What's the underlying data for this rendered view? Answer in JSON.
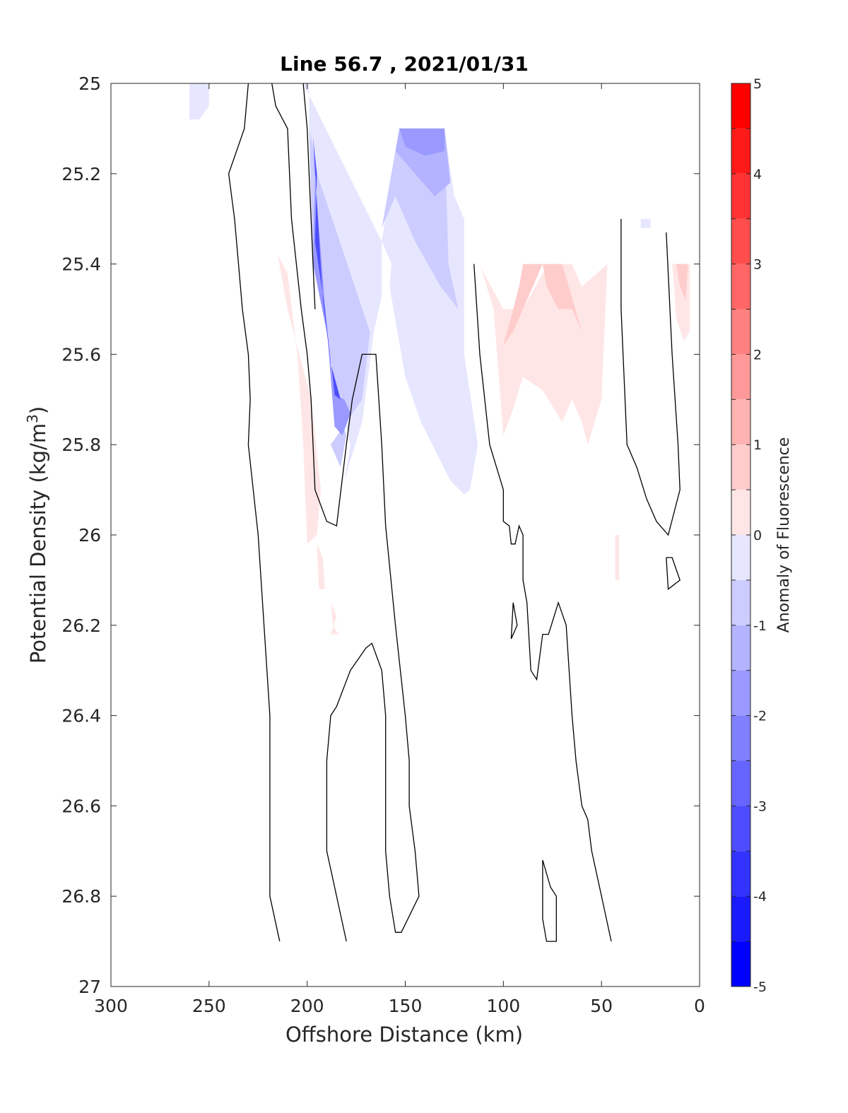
{
  "chart_data": {
    "type": "contour",
    "title": "Line 56.7 , 2021/01/31",
    "xlabel": "Offshore Distance (km)",
    "ylabel_main": "Potential Density (kg/m",
    "ylabel_sup": "3",
    "ylabel_close": ")",
    "xlim": [
      300,
      0
    ],
    "ylim": [
      25,
      27
    ],
    "y_reversed": true,
    "x_ticks": [
      "300",
      "250",
      "200",
      "150",
      "100",
      "50",
      "0"
    ],
    "x_tick_values": [
      300,
      250,
      200,
      150,
      100,
      50,
      0
    ],
    "y_ticks": [
      "25",
      "25.2",
      "25.4",
      "25.6",
      "25.8",
      "26",
      "26.2",
      "26.4",
      "26.6",
      "26.8",
      "27"
    ],
    "y_tick_values": [
      25,
      25.2,
      25.4,
      25.6,
      25.8,
      26,
      26.2,
      26.4,
      26.6,
      26.8,
      27
    ],
    "colorbar": {
      "label": "Anomaly of Fluorescence",
      "range": [
        -5,
        5
      ],
      "step": 0.5,
      "tick_labels": [
        "5",
        "4",
        "3",
        "2",
        "1",
        "0",
        "-1",
        "-2",
        "-3",
        "-4",
        "-5"
      ],
      "tick_values": [
        5,
        4,
        3,
        2,
        1,
        0,
        -1,
        -2,
        -3,
        -4,
        -5
      ],
      "negative_color": "#0000ff",
      "positive_color": "#ff0000",
      "neutral_color": "#ffffff"
    },
    "filled_regions": [
      {
        "level": -0.5,
        "points": [
          [
            260,
            25
          ],
          [
            250,
            25
          ],
          [
            250,
            25.05
          ],
          [
            255,
            25.08
          ],
          [
            260,
            25.08
          ]
        ]
      },
      {
        "level": -0.5,
        "points": [
          [
            202,
            25
          ],
          [
            199,
            25
          ],
          [
            199,
            25.1
          ],
          [
            197,
            25.2
          ],
          [
            197,
            25.4
          ],
          [
            190,
            25.55
          ],
          [
            183,
            25.7
          ],
          [
            178,
            25.8
          ],
          [
            181,
            25.88
          ],
          [
            172,
            25.75
          ],
          [
            166,
            25.55
          ],
          [
            162,
            25.47
          ],
          [
            162,
            25.35
          ],
          [
            153,
            25.1
          ],
          [
            130,
            25.1
          ],
          [
            125,
            25.25
          ],
          [
            120,
            25.3
          ],
          [
            120,
            25.6
          ],
          [
            113,
            25.8
          ],
          [
            117,
            25.9
          ],
          [
            120,
            25.91
          ],
          [
            127,
            25.88
          ],
          [
            142,
            25.75
          ],
          [
            150,
            25.65
          ],
          [
            158,
            25.45
          ],
          [
            157,
            25.4
          ],
          [
            162,
            25.35
          ]
        ]
      },
      {
        "level": -1.0,
        "points": [
          [
            153,
            25.1
          ],
          [
            130,
            25.1
          ],
          [
            128,
            25.4
          ],
          [
            123,
            25.5
          ],
          [
            132,
            25.45
          ],
          [
            145,
            25.35
          ],
          [
            155,
            25.25
          ],
          [
            162,
            25.32
          ]
        ]
      },
      {
        "level": -1.5,
        "points": [
          [
            153,
            25.1
          ],
          [
            130,
            25.1
          ],
          [
            127,
            25.22
          ],
          [
            135,
            25.25
          ],
          [
            145,
            25.2
          ],
          [
            155,
            25.15
          ]
        ]
      },
      {
        "level": -2.0,
        "points": [
          [
            153,
            25.1
          ],
          [
            130,
            25.1
          ],
          [
            130,
            25.15
          ],
          [
            140,
            25.16
          ],
          [
            150,
            25.14
          ]
        ]
      },
      {
        "level": -1.0,
        "points": [
          [
            199,
            25.1
          ],
          [
            197,
            25.4
          ],
          [
            190,
            25.55
          ],
          [
            185,
            25.7
          ],
          [
            180,
            25.78
          ],
          [
            183,
            25.85
          ],
          [
            188,
            25.8
          ],
          [
            172,
            25.7
          ],
          [
            168,
            25.55
          ],
          [
            195,
            25.2
          ]
        ]
      },
      {
        "level": -2.0,
        "points": [
          [
            198,
            25.1
          ],
          [
            196,
            25.2
          ],
          [
            197,
            25.4
          ],
          [
            190,
            25.55
          ],
          [
            186,
            25.69
          ],
          [
            181,
            25.7
          ],
          [
            178,
            25.73
          ],
          [
            182,
            25.78
          ],
          [
            186,
            25.76
          ]
        ]
      },
      {
        "level": -3.5,
        "points": [
          [
            197,
            25.12
          ],
          [
            195,
            25.2
          ],
          [
            196,
            25.35
          ],
          [
            191,
            25.5
          ],
          [
            186,
            25.69
          ],
          [
            183,
            25.7
          ],
          [
            188,
            25.62
          ],
          [
            192,
            25.48
          ]
        ]
      },
      {
        "level": 0.5,
        "points": [
          [
            215,
            25.38
          ],
          [
            210,
            25.42
          ],
          [
            205,
            25.6
          ],
          [
            202,
            25.8
          ],
          [
            200,
            26.02
          ],
          [
            195,
            26
          ],
          [
            193,
            25.9
          ],
          [
            198,
            25.7
          ],
          [
            210,
            25.5
          ]
        ]
      },
      {
        "level": 0.5,
        "points": [
          [
            195,
            26.02
          ],
          [
            192,
            26.05
          ],
          [
            191,
            26.12
          ],
          [
            194,
            26.12
          ]
        ]
      },
      {
        "level": 0.5,
        "points": [
          [
            188,
            26.15
          ],
          [
            185,
            26.18
          ],
          [
            188,
            26.22
          ],
          [
            184,
            26.22
          ],
          [
            187,
            26.2
          ]
        ]
      },
      {
        "level": 0.5,
        "points": [
          [
            112,
            25.4
          ],
          [
            105,
            25.5
          ],
          [
            100,
            25.78
          ],
          [
            95,
            25.72
          ],
          [
            90,
            25.65
          ],
          [
            80,
            25.68
          ],
          [
            70,
            25.75
          ],
          [
            65,
            25.7
          ],
          [
            60,
            25.75
          ],
          [
            57,
            25.8
          ],
          [
            50,
            25.7
          ],
          [
            47,
            25.4
          ],
          [
            60,
            25.45
          ],
          [
            65,
            25.4
          ],
          [
            75,
            25.4
          ],
          [
            80,
            25.42
          ],
          [
            90,
            25.5
          ],
          [
            100,
            25.5
          ],
          [
            110,
            25.42
          ]
        ]
      },
      {
        "level": 1.0,
        "points": [
          [
            100,
            25.58
          ],
          [
            95,
            25.5
          ],
          [
            92,
            25.45
          ],
          [
            90,
            25.4
          ],
          [
            80,
            25.4
          ],
          [
            78,
            25.45
          ],
          [
            72,
            25.5
          ],
          [
            65,
            25.5
          ],
          [
            60,
            25.55
          ],
          [
            70,
            25.4
          ],
          [
            80,
            25.4
          ],
          [
            85,
            25.45
          ],
          [
            90,
            25.5
          ],
          [
            95,
            25.55
          ]
        ]
      },
      {
        "level": 0.5,
        "points": [
          [
            14,
            25.4
          ],
          [
            5,
            25.4
          ],
          [
            5,
            25.55
          ],
          [
            8,
            25.57
          ],
          [
            12,
            25.52
          ],
          [
            13,
            25.45
          ]
        ]
      },
      {
        "level": 1.0,
        "points": [
          [
            12,
            25.4
          ],
          [
            6,
            25.4
          ],
          [
            7,
            25.48
          ],
          [
            10,
            25.45
          ]
        ]
      },
      {
        "level": 0.5,
        "points": [
          [
            43,
            26
          ],
          [
            41,
            26
          ],
          [
            41,
            26.1
          ],
          [
            43,
            26.1
          ]
        ]
      },
      {
        "level": -0.5,
        "points": [
          [
            30,
            25.3
          ],
          [
            25,
            25.3
          ],
          [
            25,
            25.32
          ],
          [
            30,
            25.32
          ]
        ]
      }
    ],
    "contour_lines": [
      {
        "level": 0,
        "points": [
          [
            230,
            25
          ],
          [
            232,
            25.1
          ],
          [
            240,
            25.2
          ],
          [
            237,
            25.3
          ],
          [
            235,
            25.4
          ],
          [
            233,
            25.5
          ],
          [
            230,
            25.6
          ],
          [
            229,
            25.7
          ],
          [
            230,
            25.8
          ],
          [
            225,
            26
          ],
          [
            222,
            26.2
          ],
          [
            219,
            26.4
          ],
          [
            219,
            26.6
          ],
          [
            219,
            26.7
          ],
          [
            219,
            26.8
          ],
          [
            215,
            26.88
          ],
          [
            214,
            26.9
          ]
        ]
      },
      {
        "level": 0,
        "points": [
          [
            218,
            25
          ],
          [
            216,
            25.05
          ],
          [
            210,
            25.1
          ],
          [
            209,
            25.2
          ],
          [
            208,
            25.3
          ],
          [
            203,
            25.5
          ],
          [
            200,
            25.6
          ],
          [
            198,
            25.7
          ],
          [
            197,
            25.8
          ],
          [
            196,
            25.9
          ],
          [
            190,
            25.97
          ],
          [
            185,
            25.98
          ],
          [
            180,
            25.8
          ],
          [
            177,
            25.7
          ],
          [
            172,
            25.6
          ],
          [
            165,
            25.6
          ],
          [
            162,
            25.8
          ],
          [
            160,
            25.98
          ],
          [
            155,
            26.2
          ],
          [
            150,
            26.4
          ],
          [
            148,
            26.5
          ],
          [
            148,
            26.6
          ],
          [
            145,
            26.7
          ],
          [
            143,
            26.8
          ],
          [
            152,
            26.88
          ],
          [
            155,
            26.88
          ],
          [
            158,
            26.8
          ],
          [
            160,
            26.7
          ],
          [
            160,
            26.4
          ],
          [
            162,
            26.3
          ],
          [
            167,
            26.24
          ],
          [
            170,
            26.25
          ],
          [
            178,
            26.3
          ],
          [
            185,
            26.38
          ],
          [
            188,
            26.4
          ],
          [
            190,
            26.5
          ],
          [
            190,
            26.6
          ],
          [
            190,
            26.7
          ],
          [
            185,
            26.8
          ],
          [
            180,
            26.9
          ]
        ]
      },
      {
        "level": 0,
        "points": [
          [
            202,
            25
          ],
          [
            200,
            25.1
          ],
          [
            199,
            25.2
          ],
          [
            198,
            25.3
          ],
          [
            197,
            25.4
          ],
          [
            196,
            25.5
          ]
        ]
      },
      {
        "level": 0,
        "points": [
          [
            115,
            25.4
          ],
          [
            112,
            25.6
          ],
          [
            107,
            25.8
          ],
          [
            100,
            25.9
          ],
          [
            100,
            25.97
          ],
          [
            97,
            25.98
          ],
          [
            96,
            26.02
          ],
          [
            94,
            26.02
          ],
          [
            92,
            25.98
          ],
          [
            90,
            26
          ],
          [
            90,
            26.1
          ],
          [
            88,
            26.15
          ],
          [
            86,
            26.3
          ],
          [
            83,
            26.32
          ],
          [
            80,
            26.22
          ],
          [
            77,
            26.22
          ],
          [
            72,
            26.15
          ],
          [
            68,
            26.2
          ],
          [
            65,
            26.4
          ],
          [
            63,
            26.5
          ],
          [
            60,
            26.6
          ],
          [
            57,
            26.63
          ],
          [
            55,
            26.7
          ],
          [
            50,
            26.8
          ],
          [
            45,
            26.9
          ]
        ]
      },
      {
        "level": 0,
        "points": [
          [
            95,
            26.15
          ],
          [
            93,
            26.2
          ],
          [
            96,
            26.23
          ],
          [
            95,
            26.15
          ]
        ]
      },
      {
        "level": 0,
        "points": [
          [
            80,
            26.72
          ],
          [
            76,
            26.78
          ],
          [
            73,
            26.8
          ],
          [
            73,
            26.9
          ],
          [
            78,
            26.9
          ],
          [
            80,
            26.85
          ],
          [
            80,
            26.72
          ]
        ]
      },
      {
        "level": 0,
        "points": [
          [
            40,
            25.3
          ],
          [
            40,
            25.5
          ],
          [
            38,
            25.7
          ],
          [
            37,
            25.8
          ],
          [
            32,
            25.85
          ],
          [
            27,
            25.92
          ],
          [
            22,
            25.97
          ],
          [
            16,
            26
          ],
          [
            10,
            25.9
          ],
          [
            11,
            25.8
          ],
          [
            14,
            25.6
          ],
          [
            17,
            25.33
          ]
        ]
      },
      {
        "level": 0,
        "points": [
          [
            17,
            26.05
          ],
          [
            14,
            26.05
          ],
          [
            10,
            26.1
          ],
          [
            16,
            26.12
          ],
          [
            17,
            26.05
          ]
        ]
      }
    ]
  }
}
